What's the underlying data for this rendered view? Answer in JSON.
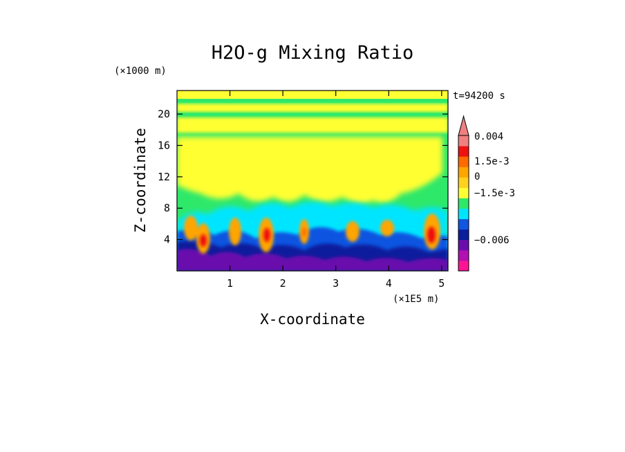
{
  "chart_data": {
    "type": "heatmap",
    "title": "H2O-g Mixing Ratio",
    "xlabel": "X-coordinate",
    "ylabel": "Z-coordinate",
    "x_unit": "(×1E5 m)",
    "y_unit": "(×1000 m)",
    "time_label": "t=94200 s",
    "xlim": [
      0,
      5.12
    ],
    "ylim": [
      0,
      23
    ],
    "x_ticks": [
      1,
      2,
      3,
      4,
      5
    ],
    "y_ticks": [
      4,
      8,
      12,
      16,
      20
    ],
    "colorbar": {
      "labels": [
        "0.004",
        "1.5e-3",
        "0",
        "−1.5e-3",
        "−0.006"
      ],
      "label_levels": [
        0.004,
        0.0015,
        0,
        -0.0015,
        -0.006
      ],
      "colors": [
        "#ff1493",
        "#b30fb3",
        "#6a0dad",
        "#0a1f9c",
        "#1155e0",
        "#00e5ff",
        "#2ee86a",
        "#ffff33",
        "#ffd21f",
        "#ffa500",
        "#ff6a00",
        "#ee1111",
        "#f08080"
      ]
    }
  }
}
